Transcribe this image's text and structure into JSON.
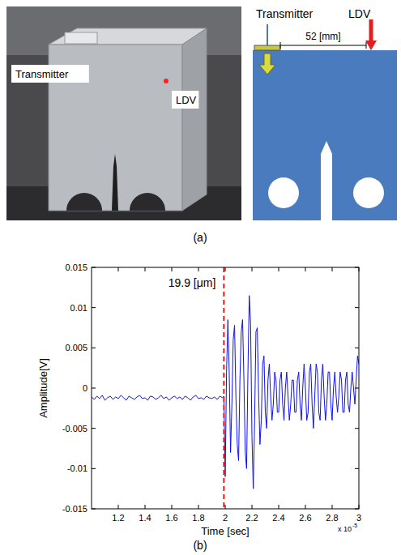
{
  "panel_a": {
    "label": "(a)",
    "photo": {
      "labels": [
        "Transmitter",
        "LDV"
      ]
    },
    "schematic": {
      "transmitter": "Transmitter",
      "ldv": "LDV",
      "distance": "52 [mm]"
    }
  },
  "chart_data": {
    "type": "line",
    "panel_label": "(b)",
    "x_label": "Time [sec]",
    "y_label": "Amplitude[V]",
    "x_multiplier": {
      "base": "x 10",
      "exponent": "-5"
    },
    "color": "#1010ee",
    "xlim": [
      1.0,
      3.0
    ],
    "xticks": [
      1.2,
      1.4,
      1.6,
      1.8,
      2,
      2.2,
      2.4,
      2.6,
      2.8,
      3
    ],
    "ylim": [
      -0.015,
      0.015
    ],
    "yticks": [
      -0.015,
      -0.01,
      -0.005,
      0,
      0.005,
      0.01,
      0.015
    ],
    "annotations": [
      {
        "x": 1.99,
        "label": "19.9 [μm]",
        "color": "#e02020",
        "line_style": "dashed"
      }
    ],
    "x": [
      1.0,
      1.02,
      1.04,
      1.06,
      1.08,
      1.1,
      1.12,
      1.14,
      1.16,
      1.18,
      1.2,
      1.22,
      1.24,
      1.26,
      1.28,
      1.3,
      1.32,
      1.34,
      1.36,
      1.38,
      1.4,
      1.42,
      1.44,
      1.46,
      1.48,
      1.5,
      1.52,
      1.54,
      1.56,
      1.58,
      1.6,
      1.62,
      1.64,
      1.66,
      1.68,
      1.7,
      1.72,
      1.74,
      1.76,
      1.78,
      1.8,
      1.82,
      1.84,
      1.86,
      1.88,
      1.9,
      1.92,
      1.94,
      1.96,
      1.98,
      1.99,
      2.0,
      2.01,
      2.02,
      2.03,
      2.04,
      2.05,
      2.06,
      2.07,
      2.08,
      2.09,
      2.1,
      2.11,
      2.12,
      2.13,
      2.14,
      2.15,
      2.16,
      2.17,
      2.18,
      2.19,
      2.2,
      2.21,
      2.22,
      2.23,
      2.24,
      2.25,
      2.26,
      2.27,
      2.28,
      2.29,
      2.3,
      2.31,
      2.32,
      2.33,
      2.34,
      2.35,
      2.36,
      2.37,
      2.38,
      2.39,
      2.4,
      2.41,
      2.42,
      2.43,
      2.44,
      2.45,
      2.46,
      2.47,
      2.48,
      2.49,
      2.5,
      2.51,
      2.52,
      2.53,
      2.54,
      2.55,
      2.56,
      2.57,
      2.58,
      2.59,
      2.6,
      2.61,
      2.62,
      2.63,
      2.64,
      2.65,
      2.66,
      2.67,
      2.68,
      2.69,
      2.7,
      2.71,
      2.72,
      2.73,
      2.74,
      2.75,
      2.76,
      2.77,
      2.78,
      2.79,
      2.8,
      2.81,
      2.82,
      2.83,
      2.84,
      2.85,
      2.86,
      2.87,
      2.88,
      2.89,
      2.9,
      2.91,
      2.92,
      2.93,
      2.94,
      2.95,
      2.96,
      2.97,
      2.98,
      2.99,
      3.0
    ],
    "values": [
      -0.0011,
      -0.0014,
      -0.001,
      -0.0013,
      -0.0009,
      -0.0015,
      -0.0012,
      -0.001,
      -0.0014,
      -0.0011,
      -0.0013,
      -0.0009,
      -0.0012,
      -0.0015,
      -0.001,
      -0.0012,
      -0.0014,
      -0.0011,
      -0.0009,
      -0.0013,
      -0.0012,
      -0.0015,
      -0.001,
      -0.0011,
      -0.0014,
      -0.0012,
      -0.0009,
      -0.0013,
      -0.0011,
      -0.0015,
      -0.0012,
      -0.001,
      -0.0013,
      -0.0011,
      -0.0014,
      -0.001,
      -0.0012,
      -0.0015,
      -0.0011,
      -0.0009,
      -0.0013,
      -0.0012,
      -0.0014,
      -0.001,
      -0.0012,
      -0.0013,
      -0.0011,
      -0.0014,
      -0.001,
      -0.0012,
      -0.001,
      -0.011,
      0.002,
      0.0085,
      0.002,
      -0.008,
      -0.002,
      0.006,
      0.0078,
      -0.001,
      -0.007,
      -0.009,
      0.001,
      0.007,
      0.0085,
      0.001,
      -0.008,
      -0.01,
      0.002,
      0.0115,
      0.008,
      -0.006,
      -0.0125,
      -0.004,
      0.007,
      0.0075,
      -0.001,
      -0.007,
      -0.004,
      0.003,
      0.004,
      -0.003,
      -0.005,
      0.001,
      0.003,
      -0.001,
      -0.004,
      -0.002,
      0.002,
      0.001,
      -0.003,
      -0.003,
      0.001,
      0.002,
      -0.002,
      -0.004,
      0.0,
      0.002,
      -0.001,
      -0.004,
      -0.002,
      0.001,
      0.001,
      -0.003,
      -0.003,
      0.001,
      0.002,
      -0.002,
      -0.004,
      0.0,
      0.003,
      0.0,
      -0.004,
      -0.003,
      0.002,
      0.003,
      -0.002,
      -0.005,
      -0.001,
      0.003,
      0.002,
      -0.003,
      -0.004,
      0.001,
      0.003,
      -0.001,
      -0.004,
      -0.002,
      0.002,
      0.002,
      -0.002,
      -0.004,
      0.0,
      0.002,
      -0.001,
      -0.003,
      -0.001,
      0.002,
      0.001,
      -0.003,
      -0.003,
      0.001,
      0.002,
      -0.002,
      -0.003,
      0.0,
      0.002,
      0.0,
      -0.002,
      0.001,
      0.004,
      0.003
    ]
  }
}
